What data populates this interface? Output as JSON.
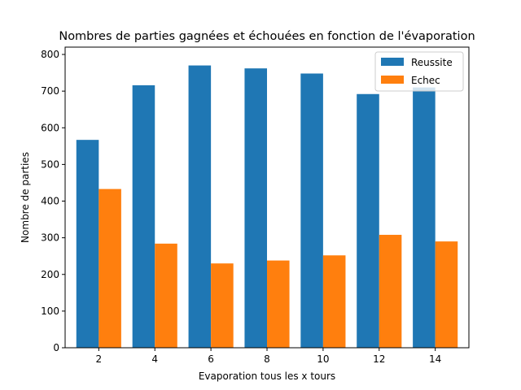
{
  "chart_data": {
    "type": "bar",
    "title": "Nombres de parties gagnées et échouées en fonction de l'évaporation",
    "xlabel": "Evaporation tous les x tours",
    "ylabel": "Nombre de parties",
    "categories": [
      "2",
      "4",
      "6",
      "8",
      "10",
      "12",
      "14"
    ],
    "x": [
      2,
      4,
      6,
      8,
      10,
      12,
      14
    ],
    "series": [
      {
        "name": "Reussite",
        "color": "#1f77b4",
        "values": [
          567,
          716,
          770,
          762,
          748,
          692,
          710
        ]
      },
      {
        "name": "Echec",
        "color": "#ff7f0e",
        "values": [
          433,
          284,
          230,
          238,
          252,
          308,
          290
        ]
      }
    ],
    "ylim": [
      0,
      820
    ],
    "yticks": [
      0,
      100,
      200,
      300,
      400,
      500,
      600,
      700,
      800
    ],
    "grid": false,
    "legend": "top-right"
  }
}
